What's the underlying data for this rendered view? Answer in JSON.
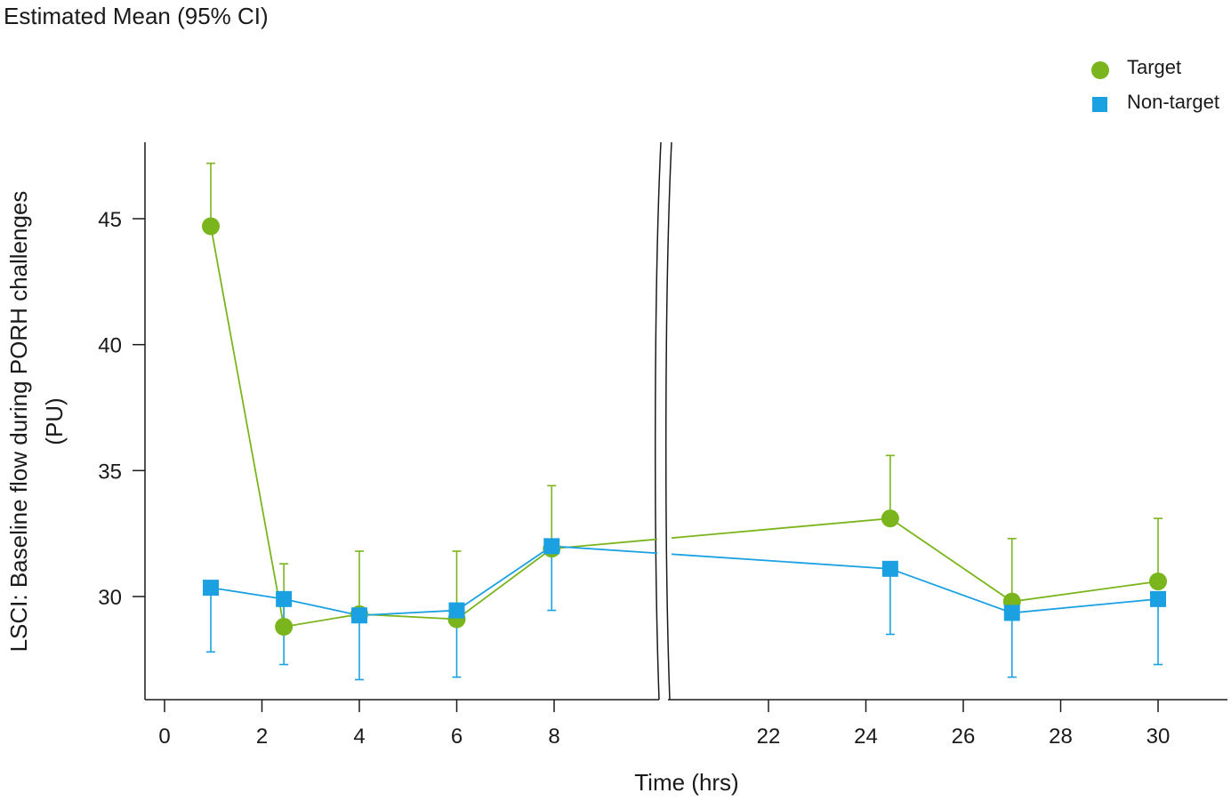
{
  "chart_data": {
    "type": "line",
    "title": "Estimated Mean (95% CI)",
    "xlabel": "Time (hrs)",
    "ylabel_lines": [
      "LSCI: Baseline flow during PORH challenges",
      "(PU)"
    ],
    "axis_break": true,
    "x_ticks_left": [
      0,
      2,
      4,
      6,
      8
    ],
    "x_ticks_right": [
      22,
      24,
      26,
      28,
      30
    ],
    "y_ticks": [
      30,
      35,
      40,
      45
    ],
    "ylim": [
      26,
      48
    ],
    "grid": false,
    "legend_position": "top-right",
    "series": [
      {
        "name": "Target",
        "color": "#7ab51d",
        "marker": "circle",
        "points": [
          {
            "x": 0.95,
            "y": 44.7,
            "lo": null,
            "hi": 47.2
          },
          {
            "x": 2.45,
            "y": 28.8,
            "lo": null,
            "hi": 31.3
          },
          {
            "x": 4.0,
            "y": 29.3,
            "lo": null,
            "hi": 31.8
          },
          {
            "x": 6.0,
            "y": 29.1,
            "lo": null,
            "hi": 31.8
          },
          {
            "x": 7.95,
            "y": 31.9,
            "lo": null,
            "hi": 34.4
          },
          {
            "x": 24.5,
            "y": 33.1,
            "lo": null,
            "hi": 35.6
          },
          {
            "x": 27.0,
            "y": 29.8,
            "lo": null,
            "hi": 32.3
          },
          {
            "x": 30.0,
            "y": 30.6,
            "lo": null,
            "hi": 33.1
          }
        ]
      },
      {
        "name": "Non-target",
        "color": "#1ba1e2",
        "marker": "square",
        "points": [
          {
            "x": 0.95,
            "y": 30.35,
            "lo": 27.8,
            "hi": null
          },
          {
            "x": 2.45,
            "y": 29.9,
            "lo": 27.3,
            "hi": null
          },
          {
            "x": 4.0,
            "y": 29.25,
            "lo": 26.7,
            "hi": null
          },
          {
            "x": 6.0,
            "y": 29.45,
            "lo": 26.8,
            "hi": null
          },
          {
            "x": 7.95,
            "y": 32.0,
            "lo": 29.45,
            "hi": null
          },
          {
            "x": 24.5,
            "y": 31.1,
            "lo": 28.5,
            "hi": null
          },
          {
            "x": 27.0,
            "y": 29.35,
            "lo": 26.8,
            "hi": null
          },
          {
            "x": 30.0,
            "y": 29.9,
            "lo": 27.3,
            "hi": null
          }
        ]
      }
    ]
  }
}
